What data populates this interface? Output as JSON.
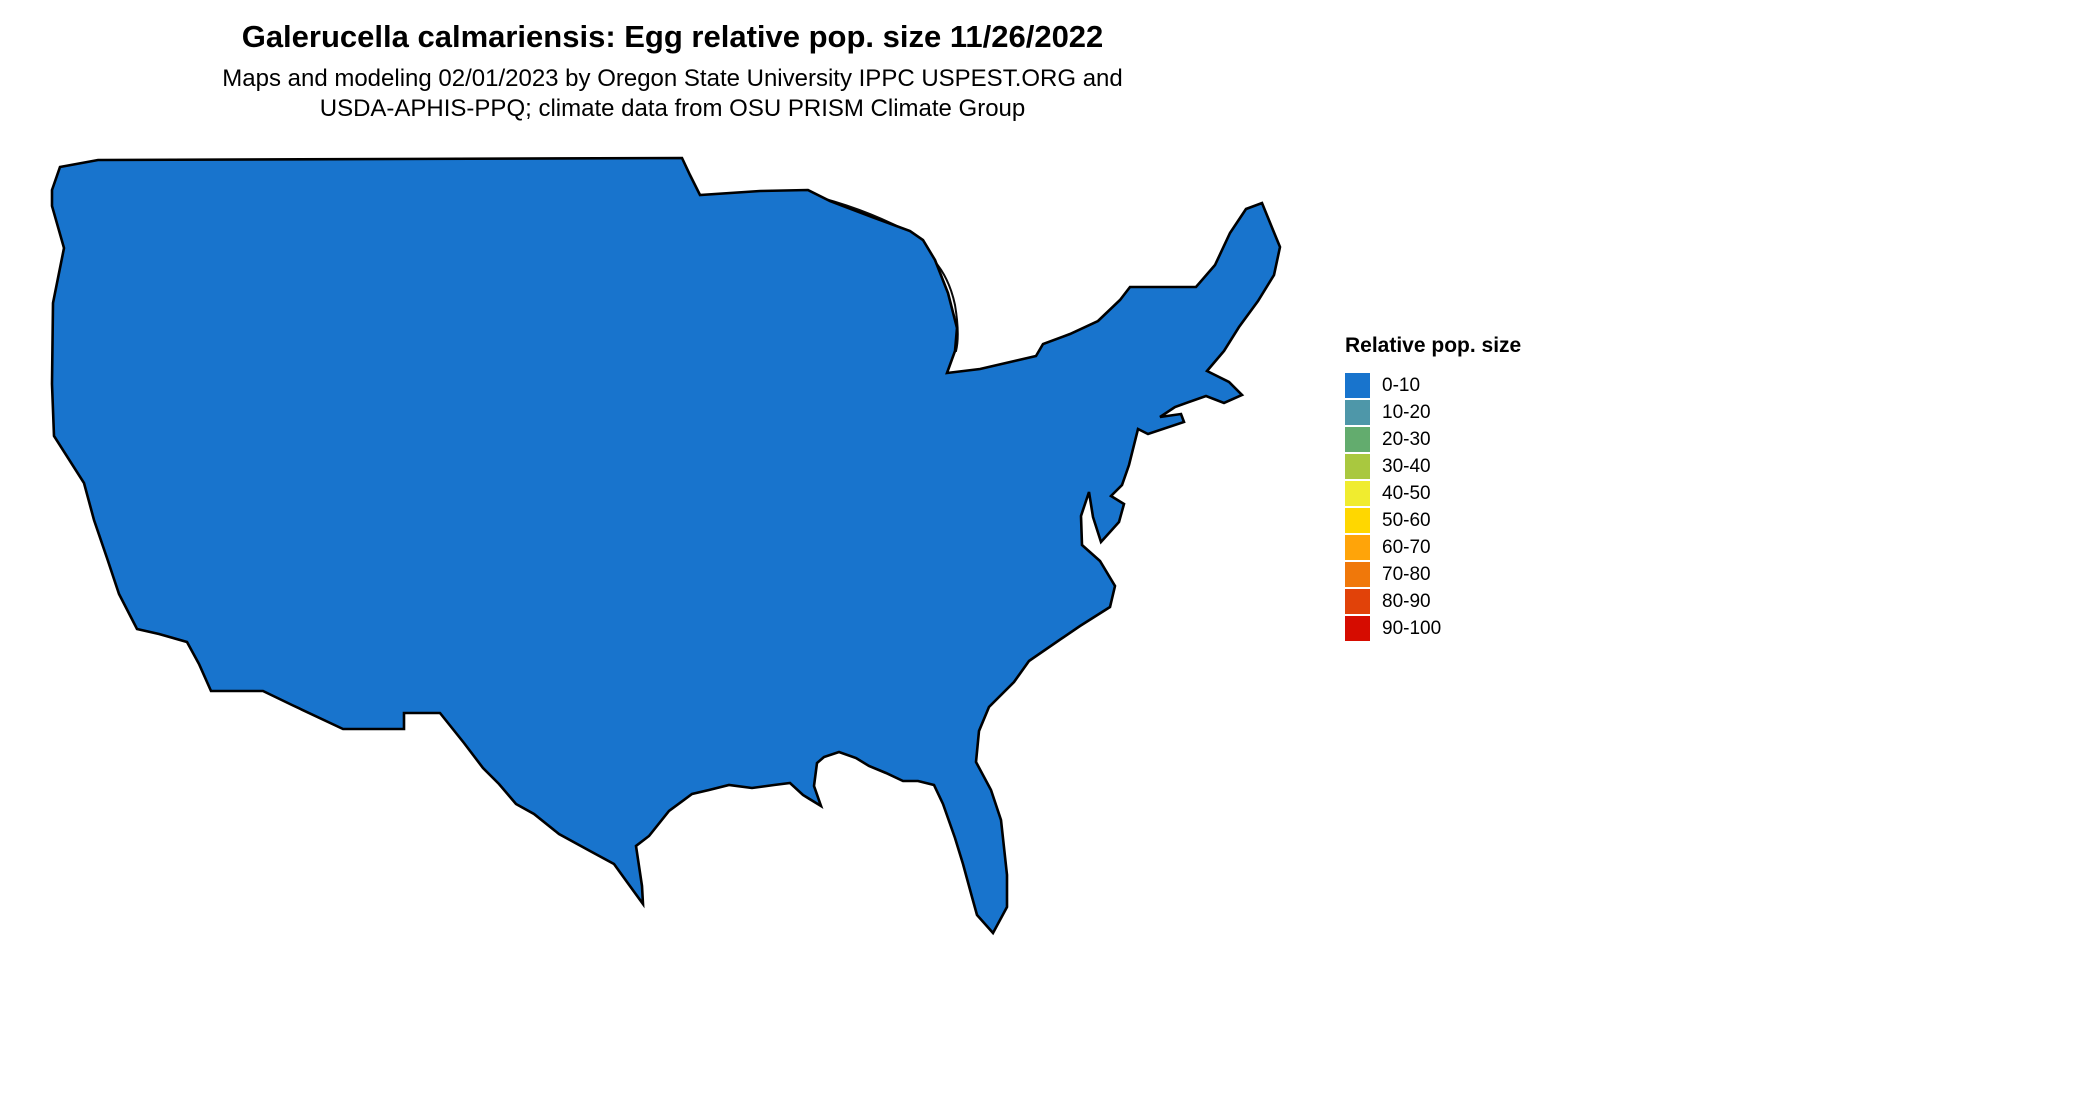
{
  "header": {
    "title": "Galerucella calmariensis: Egg relative pop. size 11/26/2022",
    "subtitle_line1": "Maps and modeling 02/01/2023 by Oregon State University IPPC USPEST.ORG and",
    "subtitle_line2": "USDA-APHIS-PPQ; climate data from OSU PRISM Climate Group"
  },
  "legend": {
    "title": "Relative pop. size",
    "items": [
      {
        "label": "0-10",
        "color": "#1874CD"
      },
      {
        "label": "10-20",
        "color": "#4E97A9"
      },
      {
        "label": "20-30",
        "color": "#63AC6E"
      },
      {
        "label": "30-40",
        "color": "#A9C83F"
      },
      {
        "label": "40-50",
        "color": "#F0EC2F"
      },
      {
        "label": "50-60",
        "color": "#FFD700"
      },
      {
        "label": "60-70",
        "color": "#FFA409"
      },
      {
        "label": "70-80",
        "color": "#F0780A"
      },
      {
        "label": "80-90",
        "color": "#E14209"
      },
      {
        "label": "90-100",
        "color": "#D60C00"
      }
    ]
  },
  "map": {
    "region": "Continental United States",
    "base_color": "#1874CD"
  }
}
